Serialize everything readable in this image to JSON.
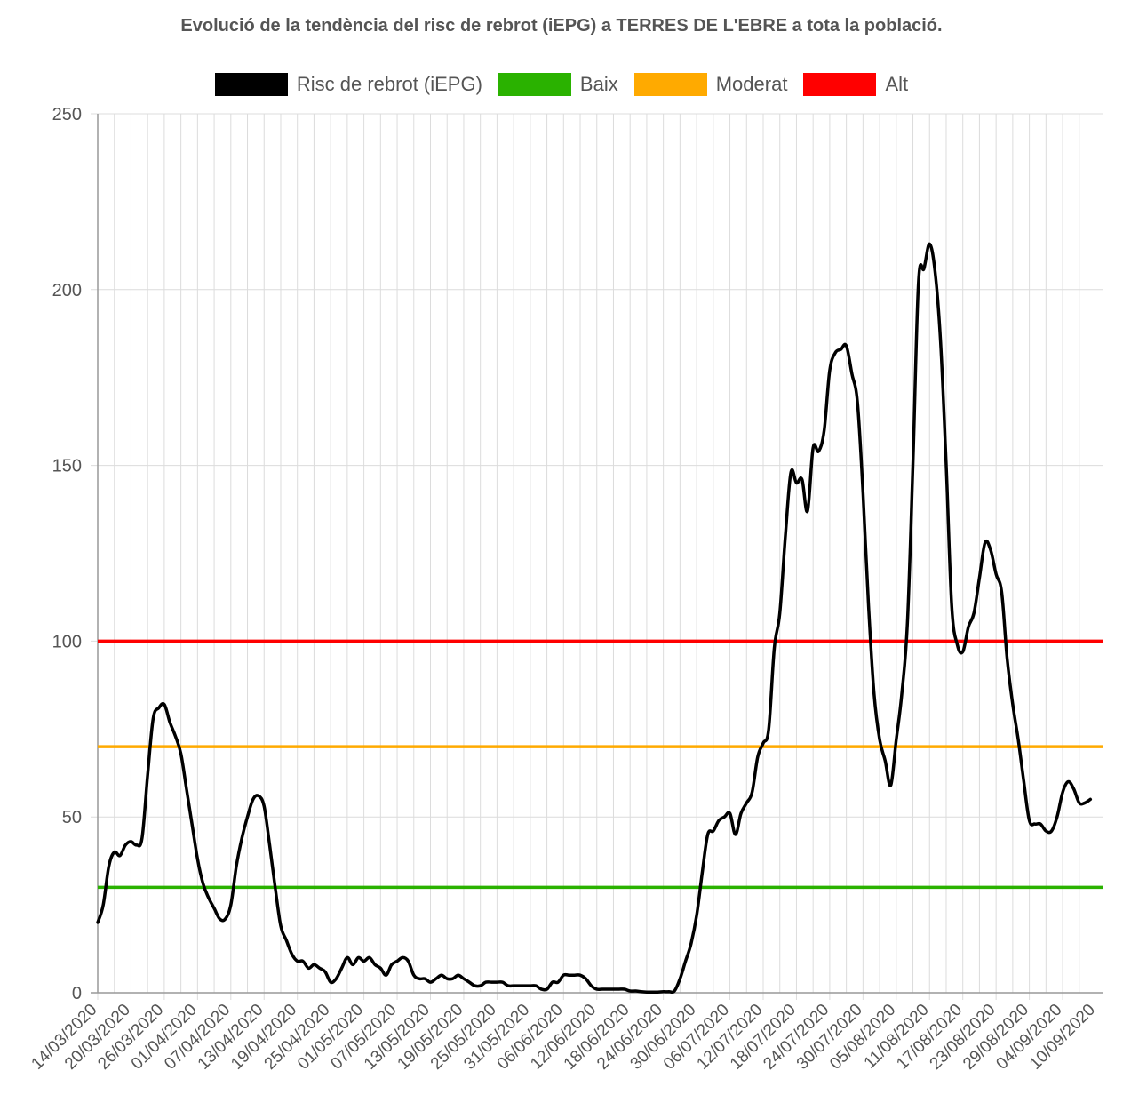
{
  "chart_data": {
    "type": "line",
    "title": "Evolució de la tendència del risc de rebrot (iEPG) a TERRES DE L'EBRE a tota la població.",
    "xlabel": "",
    "ylabel": "",
    "ylim": [
      0,
      250
    ],
    "y_ticks": [
      0,
      50,
      100,
      150,
      200,
      250
    ],
    "grid": true,
    "legend_position": "top",
    "x_start": "14/03/2020",
    "x_tick_labels": [
      "14/03/2020",
      "20/03/2020",
      "26/03/2020",
      "01/04/2020",
      "07/04/2020",
      "13/04/2020",
      "19/04/2020",
      "25/04/2020",
      "01/05/2020",
      "07/05/2020",
      "13/05/2020",
      "19/05/2020",
      "25/05/2020",
      "31/05/2020",
      "06/06/2020",
      "12/06/2020",
      "18/06/2020",
      "24/06/2020",
      "30/06/2020",
      "06/07/2020",
      "12/07/2020",
      "18/07/2020",
      "24/07/2020",
      "30/07/2020",
      "05/08/2020",
      "11/08/2020",
      "17/08/2020",
      "23/08/2020",
      "29/08/2020",
      "04/09/2020",
      "10/09/2020"
    ],
    "series": [
      {
        "name": "Risc de rebrot (iEPG)",
        "color": "#000000",
        "points": [
          [
            "14/03/2020",
            20
          ],
          [
            "15/03/2020",
            25
          ],
          [
            "16/03/2020",
            36
          ],
          [
            "17/03/2020",
            40
          ],
          [
            "18/03/2020",
            39
          ],
          [
            "19/03/2020",
            42
          ],
          [
            "20/03/2020",
            43
          ],
          [
            "21/03/2020",
            42
          ],
          [
            "22/03/2020",
            44
          ],
          [
            "23/03/2020",
            62
          ],
          [
            "24/03/2020",
            78
          ],
          [
            "25/03/2020",
            81
          ],
          [
            "26/03/2020",
            82
          ],
          [
            "27/03/2020",
            77
          ],
          [
            "28/03/2020",
            73
          ],
          [
            "29/03/2020",
            68
          ],
          [
            "30/03/2020",
            58
          ],
          [
            "31/03/2020",
            48
          ],
          [
            "01/04/2020",
            38
          ],
          [
            "02/04/2020",
            31
          ],
          [
            "03/04/2020",
            27
          ],
          [
            "04/04/2020",
            24
          ],
          [
            "05/04/2020",
            21
          ],
          [
            "06/04/2020",
            21
          ],
          [
            "07/04/2020",
            25
          ],
          [
            "08/04/2020",
            36
          ],
          [
            "09/04/2020",
            44
          ],
          [
            "10/04/2020",
            50
          ],
          [
            "11/04/2020",
            55
          ],
          [
            "12/04/2020",
            56
          ],
          [
            "13/04/2020",
            53
          ],
          [
            "14/04/2020",
            42
          ],
          [
            "15/04/2020",
            30
          ],
          [
            "16/04/2020",
            19
          ],
          [
            "17/04/2020",
            15
          ],
          [
            "18/04/2020",
            11
          ],
          [
            "19/04/2020",
            9
          ],
          [
            "20/04/2020",
            9
          ],
          [
            "21/04/2020",
            7
          ],
          [
            "22/04/2020",
            8
          ],
          [
            "23/04/2020",
            7
          ],
          [
            "24/04/2020",
            6
          ],
          [
            "25/04/2020",
            3
          ],
          [
            "26/04/2020",
            4
          ],
          [
            "27/04/2020",
            7
          ],
          [
            "28/04/2020",
            10
          ],
          [
            "29/04/2020",
            8
          ],
          [
            "30/04/2020",
            10
          ],
          [
            "01/05/2020",
            9
          ],
          [
            "02/05/2020",
            10
          ],
          [
            "03/05/2020",
            8
          ],
          [
            "04/05/2020",
            7
          ],
          [
            "05/05/2020",
            5
          ],
          [
            "06/05/2020",
            8
          ],
          [
            "07/05/2020",
            9
          ],
          [
            "08/05/2020",
            10
          ],
          [
            "09/05/2020",
            9
          ],
          [
            "10/05/2020",
            5
          ],
          [
            "11/05/2020",
            4
          ],
          [
            "12/05/2020",
            4
          ],
          [
            "13/05/2020",
            3
          ],
          [
            "14/05/2020",
            4
          ],
          [
            "15/05/2020",
            5
          ],
          [
            "16/05/2020",
            4
          ],
          [
            "17/05/2020",
            4
          ],
          [
            "18/05/2020",
            5
          ],
          [
            "19/05/2020",
            4
          ],
          [
            "20/05/2020",
            3
          ],
          [
            "21/05/2020",
            2
          ],
          [
            "22/05/2020",
            2
          ],
          [
            "23/05/2020",
            3
          ],
          [
            "24/05/2020",
            3
          ],
          [
            "25/05/2020",
            3
          ],
          [
            "26/05/2020",
            3
          ],
          [
            "27/05/2020",
            2
          ],
          [
            "28/05/2020",
            2
          ],
          [
            "29/05/2020",
            2
          ],
          [
            "30/05/2020",
            2
          ],
          [
            "31/05/2020",
            2
          ],
          [
            "01/06/2020",
            2
          ],
          [
            "02/06/2020",
            1
          ],
          [
            "03/06/2020",
            1
          ],
          [
            "04/06/2020",
            3
          ],
          [
            "05/06/2020",
            3
          ],
          [
            "06/06/2020",
            5
          ],
          [
            "07/06/2020",
            5
          ],
          [
            "08/06/2020",
            5
          ],
          [
            "09/06/2020",
            5
          ],
          [
            "10/06/2020",
            4
          ],
          [
            "11/06/2020",
            2
          ],
          [
            "12/06/2020",
            1
          ],
          [
            "13/06/2020",
            1
          ],
          [
            "14/06/2020",
            1
          ],
          [
            "15/06/2020",
            1
          ],
          [
            "16/06/2020",
            1
          ],
          [
            "17/06/2020",
            1
          ],
          [
            "18/06/2020",
            0.5
          ],
          [
            "19/06/2020",
            0.5
          ],
          [
            "20/06/2020",
            0.3
          ],
          [
            "21/06/2020",
            0.2
          ],
          [
            "22/06/2020",
            0.2
          ],
          [
            "23/06/2020",
            0.2
          ],
          [
            "24/06/2020",
            0.3
          ],
          [
            "25/06/2020",
            0.3
          ],
          [
            "26/06/2020",
            0.5
          ],
          [
            "27/06/2020",
            4
          ],
          [
            "28/06/2020",
            9
          ],
          [
            "29/06/2020",
            14
          ],
          [
            "30/06/2020",
            22
          ],
          [
            "01/07/2020",
            34
          ],
          [
            "02/07/2020",
            45
          ],
          [
            "03/07/2020",
            46
          ],
          [
            "04/07/2020",
            49
          ],
          [
            "05/07/2020",
            50
          ],
          [
            "06/07/2020",
            51
          ],
          [
            "07/07/2020",
            45
          ],
          [
            "08/07/2020",
            51
          ],
          [
            "09/07/2020",
            54
          ],
          [
            "10/07/2020",
            57
          ],
          [
            "11/07/2020",
            67
          ],
          [
            "12/07/2020",
            71
          ],
          [
            "13/07/2020",
            75
          ],
          [
            "14/07/2020",
            98
          ],
          [
            "15/07/2020",
            108
          ],
          [
            "16/07/2020",
            130
          ],
          [
            "17/07/2020",
            148
          ],
          [
            "18/07/2020",
            145
          ],
          [
            "19/07/2020",
            146
          ],
          [
            "20/07/2020",
            137
          ],
          [
            "21/07/2020",
            155
          ],
          [
            "22/07/2020",
            154
          ],
          [
            "23/07/2020",
            160
          ],
          [
            "24/07/2020",
            177
          ],
          [
            "25/07/2020",
            182
          ],
          [
            "26/07/2020",
            183
          ],
          [
            "27/07/2020",
            184
          ],
          [
            "28/07/2020",
            176
          ],
          [
            "29/07/2020",
            168
          ],
          [
            "30/07/2020",
            142
          ],
          [
            "31/07/2020",
            110
          ],
          [
            "01/08/2020",
            85
          ],
          [
            "02/08/2020",
            72
          ],
          [
            "03/08/2020",
            66
          ],
          [
            "04/08/2020",
            59
          ],
          [
            "05/08/2020",
            72
          ],
          [
            "06/08/2020",
            85
          ],
          [
            "07/08/2020",
            105
          ],
          [
            "08/08/2020",
            150
          ],
          [
            "09/08/2020",
            202
          ],
          [
            "10/08/2020",
            206
          ],
          [
            "11/08/2020",
            213
          ],
          [
            "12/08/2020",
            205
          ],
          [
            "13/08/2020",
            185
          ],
          [
            "14/08/2020",
            150
          ],
          [
            "15/08/2020",
            110
          ],
          [
            "16/08/2020",
            99
          ],
          [
            "17/08/2020",
            97
          ],
          [
            "18/08/2020",
            104
          ],
          [
            "19/08/2020",
            108
          ],
          [
            "20/08/2020",
            118
          ],
          [
            "21/08/2020",
            128
          ],
          [
            "22/08/2020",
            126
          ],
          [
            "23/08/2020",
            119
          ],
          [
            "24/08/2020",
            114
          ],
          [
            "25/08/2020",
            95
          ],
          [
            "26/08/2020",
            82
          ],
          [
            "27/08/2020",
            72
          ],
          [
            "28/08/2020",
            60
          ],
          [
            "29/08/2020",
            49
          ],
          [
            "30/08/2020",
            48
          ],
          [
            "31/08/2020",
            48
          ],
          [
            "01/09/2020",
            46
          ],
          [
            "02/09/2020",
            46
          ],
          [
            "03/09/2020",
            50
          ],
          [
            "04/09/2020",
            57
          ],
          [
            "05/09/2020",
            60
          ],
          [
            "06/09/2020",
            58
          ],
          [
            "07/09/2020",
            54
          ],
          [
            "08/09/2020",
            54
          ],
          [
            "09/09/2020",
            55
          ]
        ]
      },
      {
        "name": "Baix",
        "color": "#2ab200",
        "constant": 30
      },
      {
        "name": "Moderat",
        "color": "#ffaa00",
        "constant": 70
      },
      {
        "name": "Alt",
        "color": "#ff0000",
        "constant": 100
      }
    ]
  }
}
